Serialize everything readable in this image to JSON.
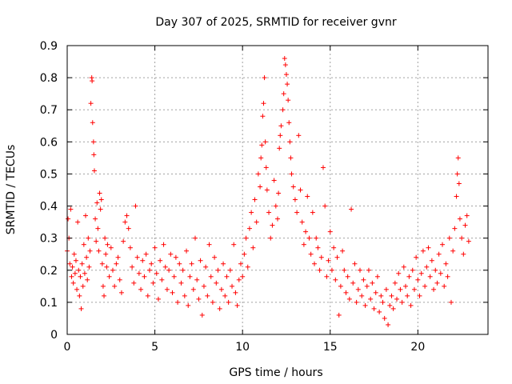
{
  "chart_data": {
    "type": "scatter",
    "title": "Day 307 of 2025, SRMTID for receiver gvnr",
    "xlabel": "GPS time / hours",
    "ylabel": "SRMTID / TECUs",
    "xlim": [
      0,
      24
    ],
    "ylim": [
      0,
      0.9
    ],
    "xticks": [
      0,
      5,
      10,
      15,
      20
    ],
    "yticks": [
      0,
      0.1,
      0.2,
      0.3,
      0.4,
      0.5,
      0.6,
      0.7,
      0.8,
      0.9
    ],
    "xtick_labels": [
      "0",
      "5",
      "10",
      "15",
      "20"
    ],
    "ytick_labels": [
      "0",
      "0.1",
      "0.2",
      "0.3",
      "0.4",
      "0.5",
      "0.6",
      "0.7",
      "0.8",
      "0.9"
    ],
    "grid": true,
    "marker": "+",
    "marker_color": "#ff0000",
    "series": [
      {
        "name": "SRMTID",
        "points": [
          [
            0.0,
            0.26
          ],
          [
            0.05,
            0.36
          ],
          [
            0.1,
            0.3
          ],
          [
            0.15,
            0.22
          ],
          [
            0.2,
            0.39
          ],
          [
            0.25,
            0.18
          ],
          [
            0.3,
            0.21
          ],
          [
            0.35,
            0.16
          ],
          [
            0.4,
            0.25
          ],
          [
            0.45,
            0.19
          ],
          [
            0.5,
            0.23
          ],
          [
            0.55,
            0.14
          ],
          [
            0.6,
            0.35
          ],
          [
            0.65,
            0.2
          ],
          [
            0.7,
            0.12
          ],
          [
            0.75,
            0.18
          ],
          [
            0.8,
            0.08
          ],
          [
            0.85,
            0.22
          ],
          [
            0.9,
            0.15
          ],
          [
            0.95,
            0.28
          ],
          [
            1.0,
            0.19
          ],
          [
            1.05,
            0.37
          ],
          [
            1.1,
            0.24
          ],
          [
            1.15,
            0.17
          ],
          [
            1.2,
            0.3
          ],
          [
            1.25,
            0.21
          ],
          [
            1.3,
            0.26
          ],
          [
            1.35,
            0.72
          ],
          [
            1.4,
            0.8
          ],
          [
            1.42,
            0.79
          ],
          [
            1.45,
            0.66
          ],
          [
            1.5,
            0.6
          ],
          [
            1.52,
            0.56
          ],
          [
            1.55,
            0.51
          ],
          [
            1.6,
            0.36
          ],
          [
            1.65,
            0.29
          ],
          [
            1.7,
            0.41
          ],
          [
            1.75,
            0.33
          ],
          [
            1.8,
            0.26
          ],
          [
            1.85,
            0.44
          ],
          [
            1.9,
            0.39
          ],
          [
            1.95,
            0.42
          ],
          [
            2.0,
            0.22
          ],
          [
            2.05,
            0.15
          ],
          [
            2.1,
            0.12
          ],
          [
            2.15,
            0.3
          ],
          [
            2.2,
            0.25
          ],
          [
            2.25,
            0.21
          ],
          [
            2.3,
            0.28
          ],
          [
            2.4,
            0.18
          ],
          [
            2.5,
            0.27
          ],
          [
            2.6,
            0.2
          ],
          [
            2.7,
            0.15
          ],
          [
            2.8,
            0.22
          ],
          [
            2.9,
            0.24
          ],
          [
            3.0,
            0.17
          ],
          [
            3.1,
            0.13
          ],
          [
            3.2,
            0.29
          ],
          [
            3.3,
            0.35
          ],
          [
            3.4,
            0.37
          ],
          [
            3.5,
            0.33
          ],
          [
            3.6,
            0.27
          ],
          [
            3.7,
            0.21
          ],
          [
            3.8,
            0.16
          ],
          [
            3.9,
            0.4
          ],
          [
            4.0,
            0.24
          ],
          [
            4.1,
            0.19
          ],
          [
            4.2,
            0.14
          ],
          [
            4.3,
            0.23
          ],
          [
            4.4,
            0.18
          ],
          [
            4.5,
            0.25
          ],
          [
            4.6,
            0.12
          ],
          [
            4.7,
            0.2
          ],
          [
            4.8,
            0.22
          ],
          [
            4.9,
            0.16
          ],
          [
            5.0,
            0.27
          ],
          [
            5.1,
            0.19
          ],
          [
            5.2,
            0.11
          ],
          [
            5.3,
            0.23
          ],
          [
            5.4,
            0.17
          ],
          [
            5.5,
            0.28
          ],
          [
            5.6,
            0.21
          ],
          [
            5.7,
            0.14
          ],
          [
            5.8,
            0.2
          ],
          [
            5.9,
            0.25
          ],
          [
            6.0,
            0.13
          ],
          [
            6.1,
            0.18
          ],
          [
            6.2,
            0.24
          ],
          [
            6.3,
            0.1
          ],
          [
            6.4,
            0.22
          ],
          [
            6.5,
            0.16
          ],
          [
            6.6,
            0.2
          ],
          [
            6.7,
            0.12
          ],
          [
            6.8,
            0.26
          ],
          [
            6.9,
            0.09
          ],
          [
            7.0,
            0.18
          ],
          [
            7.1,
            0.22
          ],
          [
            7.2,
            0.14
          ],
          [
            7.3,
            0.3
          ],
          [
            7.4,
            0.17
          ],
          [
            7.5,
            0.11
          ],
          [
            7.6,
            0.23
          ],
          [
            7.7,
            0.06
          ],
          [
            7.8,
            0.15
          ],
          [
            7.9,
            0.21
          ],
          [
            8.0,
            0.12
          ],
          [
            8.1,
            0.28
          ],
          [
            8.2,
            0.18
          ],
          [
            8.3,
            0.1
          ],
          [
            8.4,
            0.24
          ],
          [
            8.5,
            0.16
          ],
          [
            8.6,
            0.2
          ],
          [
            8.7,
            0.08
          ],
          [
            8.8,
            0.14
          ],
          [
            8.9,
            0.22
          ],
          [
            9.0,
            0.12
          ],
          [
            9.1,
            0.18
          ],
          [
            9.2,
            0.1
          ],
          [
            9.3,
            0.2
          ],
          [
            9.4,
            0.15
          ],
          [
            9.5,
            0.28
          ],
          [
            9.6,
            0.13
          ],
          [
            9.7,
            0.09
          ],
          [
            9.8,
            0.17
          ],
          [
            9.9,
            0.22
          ],
          [
            10.0,
            0.18
          ],
          [
            10.1,
            0.25
          ],
          [
            10.2,
            0.3
          ],
          [
            10.3,
            0.21
          ],
          [
            10.4,
            0.33
          ],
          [
            10.5,
            0.38
          ],
          [
            10.6,
            0.27
          ],
          [
            10.7,
            0.42
          ],
          [
            10.8,
            0.35
          ],
          [
            10.9,
            0.5
          ],
          [
            11.0,
            0.46
          ],
          [
            11.05,
            0.55
          ],
          [
            11.1,
            0.59
          ],
          [
            11.15,
            0.68
          ],
          [
            11.2,
            0.72
          ],
          [
            11.25,
            0.8
          ],
          [
            11.3,
            0.6
          ],
          [
            11.35,
            0.52
          ],
          [
            11.4,
            0.45
          ],
          [
            11.5,
            0.38
          ],
          [
            11.6,
            0.3
          ],
          [
            11.7,
            0.34
          ],
          [
            11.8,
            0.48
          ],
          [
            11.9,
            0.4
          ],
          [
            12.0,
            0.36
          ],
          [
            12.05,
            0.44
          ],
          [
            12.1,
            0.58
          ],
          [
            12.15,
            0.62
          ],
          [
            12.2,
            0.65
          ],
          [
            12.3,
            0.7
          ],
          [
            12.35,
            0.75
          ],
          [
            12.4,
            0.86
          ],
          [
            12.45,
            0.84
          ],
          [
            12.5,
            0.81
          ],
          [
            12.55,
            0.78
          ],
          [
            12.6,
            0.73
          ],
          [
            12.65,
            0.66
          ],
          [
            12.7,
            0.6
          ],
          [
            12.75,
            0.55
          ],
          [
            12.8,
            0.5
          ],
          [
            12.9,
            0.46
          ],
          [
            13.0,
            0.42
          ],
          [
            13.1,
            0.38
          ],
          [
            13.2,
            0.62
          ],
          [
            13.3,
            0.45
          ],
          [
            13.4,
            0.35
          ],
          [
            13.5,
            0.28
          ],
          [
            13.6,
            0.32
          ],
          [
            13.7,
            0.43
          ],
          [
            13.8,
            0.3
          ],
          [
            13.9,
            0.25
          ],
          [
            14.0,
            0.38
          ],
          [
            14.1,
            0.22
          ],
          [
            14.2,
            0.3
          ],
          [
            14.3,
            0.27
          ],
          [
            14.4,
            0.2
          ],
          [
            14.5,
            0.24
          ],
          [
            14.6,
            0.52
          ],
          [
            14.7,
            0.4
          ],
          [
            14.8,
            0.18
          ],
          [
            14.9,
            0.23
          ],
          [
            15.0,
            0.32
          ],
          [
            15.1,
            0.2
          ],
          [
            15.2,
            0.27
          ],
          [
            15.3,
            0.17
          ],
          [
            15.4,
            0.24
          ],
          [
            15.5,
            0.06
          ],
          [
            15.6,
            0.15
          ],
          [
            15.7,
            0.26
          ],
          [
            15.8,
            0.2
          ],
          [
            15.9,
            0.13
          ],
          [
            16.0,
            0.18
          ],
          [
            16.1,
            0.11
          ],
          [
            16.2,
            0.39
          ],
          [
            16.3,
            0.16
          ],
          [
            16.4,
            0.22
          ],
          [
            16.5,
            0.1
          ],
          [
            16.6,
            0.14
          ],
          [
            16.7,
            0.2
          ],
          [
            16.8,
            0.12
          ],
          [
            16.9,
            0.17
          ],
          [
            17.0,
            0.09
          ],
          [
            17.1,
            0.15
          ],
          [
            17.2,
            0.2
          ],
          [
            17.3,
            0.11
          ],
          [
            17.4,
            0.16
          ],
          [
            17.5,
            0.08
          ],
          [
            17.6,
            0.13
          ],
          [
            17.7,
            0.18
          ],
          [
            17.8,
            0.07
          ],
          [
            17.9,
            0.12
          ],
          [
            18.0,
            0.1
          ],
          [
            18.1,
            0.05
          ],
          [
            18.2,
            0.14
          ],
          [
            18.3,
            0.03
          ],
          [
            18.4,
            0.09
          ],
          [
            18.5,
            0.12
          ],
          [
            18.6,
            0.08
          ],
          [
            18.7,
            0.16
          ],
          [
            18.8,
            0.11
          ],
          [
            18.9,
            0.19
          ],
          [
            19.0,
            0.14
          ],
          [
            19.1,
            0.1
          ],
          [
            19.2,
            0.21
          ],
          [
            19.3,
            0.15
          ],
          [
            19.4,
            0.12
          ],
          [
            19.5,
            0.18
          ],
          [
            19.6,
            0.09
          ],
          [
            19.7,
            0.2
          ],
          [
            19.8,
            0.14
          ],
          [
            19.9,
            0.24
          ],
          [
            20.0,
            0.17
          ],
          [
            20.1,
            0.12
          ],
          [
            20.2,
            0.19
          ],
          [
            20.3,
            0.26
          ],
          [
            20.4,
            0.15
          ],
          [
            20.5,
            0.21
          ],
          [
            20.6,
            0.27
          ],
          [
            20.7,
            0.18
          ],
          [
            20.8,
            0.23
          ],
          [
            20.9,
            0.14
          ],
          [
            21.0,
            0.2
          ],
          [
            21.1,
            0.16
          ],
          [
            21.2,
            0.25
          ],
          [
            21.3,
            0.19
          ],
          [
            21.4,
            0.28
          ],
          [
            21.5,
            0.15
          ],
          [
            21.6,
            0.22
          ],
          [
            21.7,
            0.18
          ],
          [
            21.8,
            0.3
          ],
          [
            21.9,
            0.1
          ],
          [
            22.0,
            0.26
          ],
          [
            22.1,
            0.33
          ],
          [
            22.2,
            0.43
          ],
          [
            22.25,
            0.5
          ],
          [
            22.3,
            0.55
          ],
          [
            22.35,
            0.47
          ],
          [
            22.4,
            0.36
          ],
          [
            22.5,
            0.3
          ],
          [
            22.6,
            0.25
          ],
          [
            22.7,
            0.34
          ],
          [
            22.8,
            0.37
          ],
          [
            22.9,
            0.29
          ]
        ]
      }
    ]
  }
}
